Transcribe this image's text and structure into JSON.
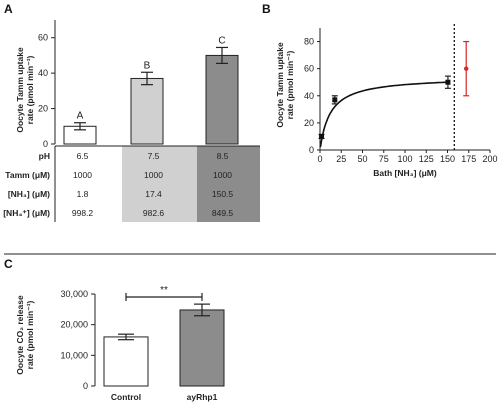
{
  "panels": {
    "a": "A",
    "b": "B",
    "c": "C"
  },
  "chart_data": [
    {
      "panel": "A",
      "type": "bar",
      "ylabel_line1": "Oocyte Tamm uptake",
      "ylabel_line2": "rate (pmol min⁻¹)",
      "ylim": [
        0,
        70
      ],
      "yticks": [
        0,
        20,
        40,
        60
      ],
      "categories": [
        "6.5",
        "7.5",
        "8.5"
      ],
      "values": [
        10,
        37,
        50
      ],
      "errors": [
        2,
        3.5,
        4.5
      ],
      "bar_colors": [
        "#ffffff",
        "#d0d0d0",
        "#8c8c8c"
      ],
      "significance_letters": [
        "A",
        "B",
        "C"
      ],
      "table": {
        "row_labels": [
          "pH",
          "Tamm (μM)",
          "[NH₃] (μM)",
          "[NH₄⁺] (μM)"
        ],
        "columns": [
          [
            "6.5",
            "1000",
            "1.8",
            "998.2"
          ],
          [
            "7.5",
            "1000",
            "17.4",
            "982.6"
          ],
          [
            "8.5",
            "1000",
            "150.5",
            "849.5"
          ]
        ],
        "column_colors": [
          "#ffffff",
          "#d0d0d0",
          "#8c8c8c"
        ]
      }
    },
    {
      "panel": "B",
      "type": "scatter",
      "xlabel": "Bath [NH₃] (μM)",
      "ylabel_line1": "Oocyte Tamm uptake",
      "ylabel_line2": "rate (pmol min⁻¹)",
      "xlim": [
        0,
        200
      ],
      "ylim": [
        0,
        90
      ],
      "xticks": [
        0,
        25,
        50,
        75,
        100,
        125,
        150,
        175,
        200
      ],
      "yticks": [
        0,
        20,
        40,
        60,
        80
      ],
      "points": [
        {
          "x": 1.8,
          "y": 10,
          "err": 1.5
        },
        {
          "x": 17.4,
          "y": 37,
          "err": 3
        },
        {
          "x": 150.5,
          "y": 50,
          "err": 4.5
        }
      ],
      "fit": {
        "vmax": 54,
        "km": 12
      },
      "dotted_x": 158,
      "red_point": {
        "x": 172,
        "y": 60,
        "err": 20,
        "color": "#d62728"
      }
    },
    {
      "panel": "C",
      "type": "bar",
      "ylabel_line1": "Oocyte CO₂ release",
      "ylabel_line2": "rate (pmol min⁻¹)",
      "ylim": [
        0,
        30000
      ],
      "yticks": [
        0,
        10000,
        20000,
        30000
      ],
      "ytick_labels": [
        "0",
        "10,000",
        "20,000",
        "30,000"
      ],
      "categories": [
        "Control",
        "ayRhp1"
      ],
      "values": [
        16000,
        24800
      ],
      "errors": [
        900,
        1900
      ],
      "bar_colors": [
        "#ffffff",
        "#8c8c8c"
      ],
      "significance": "**"
    }
  ]
}
